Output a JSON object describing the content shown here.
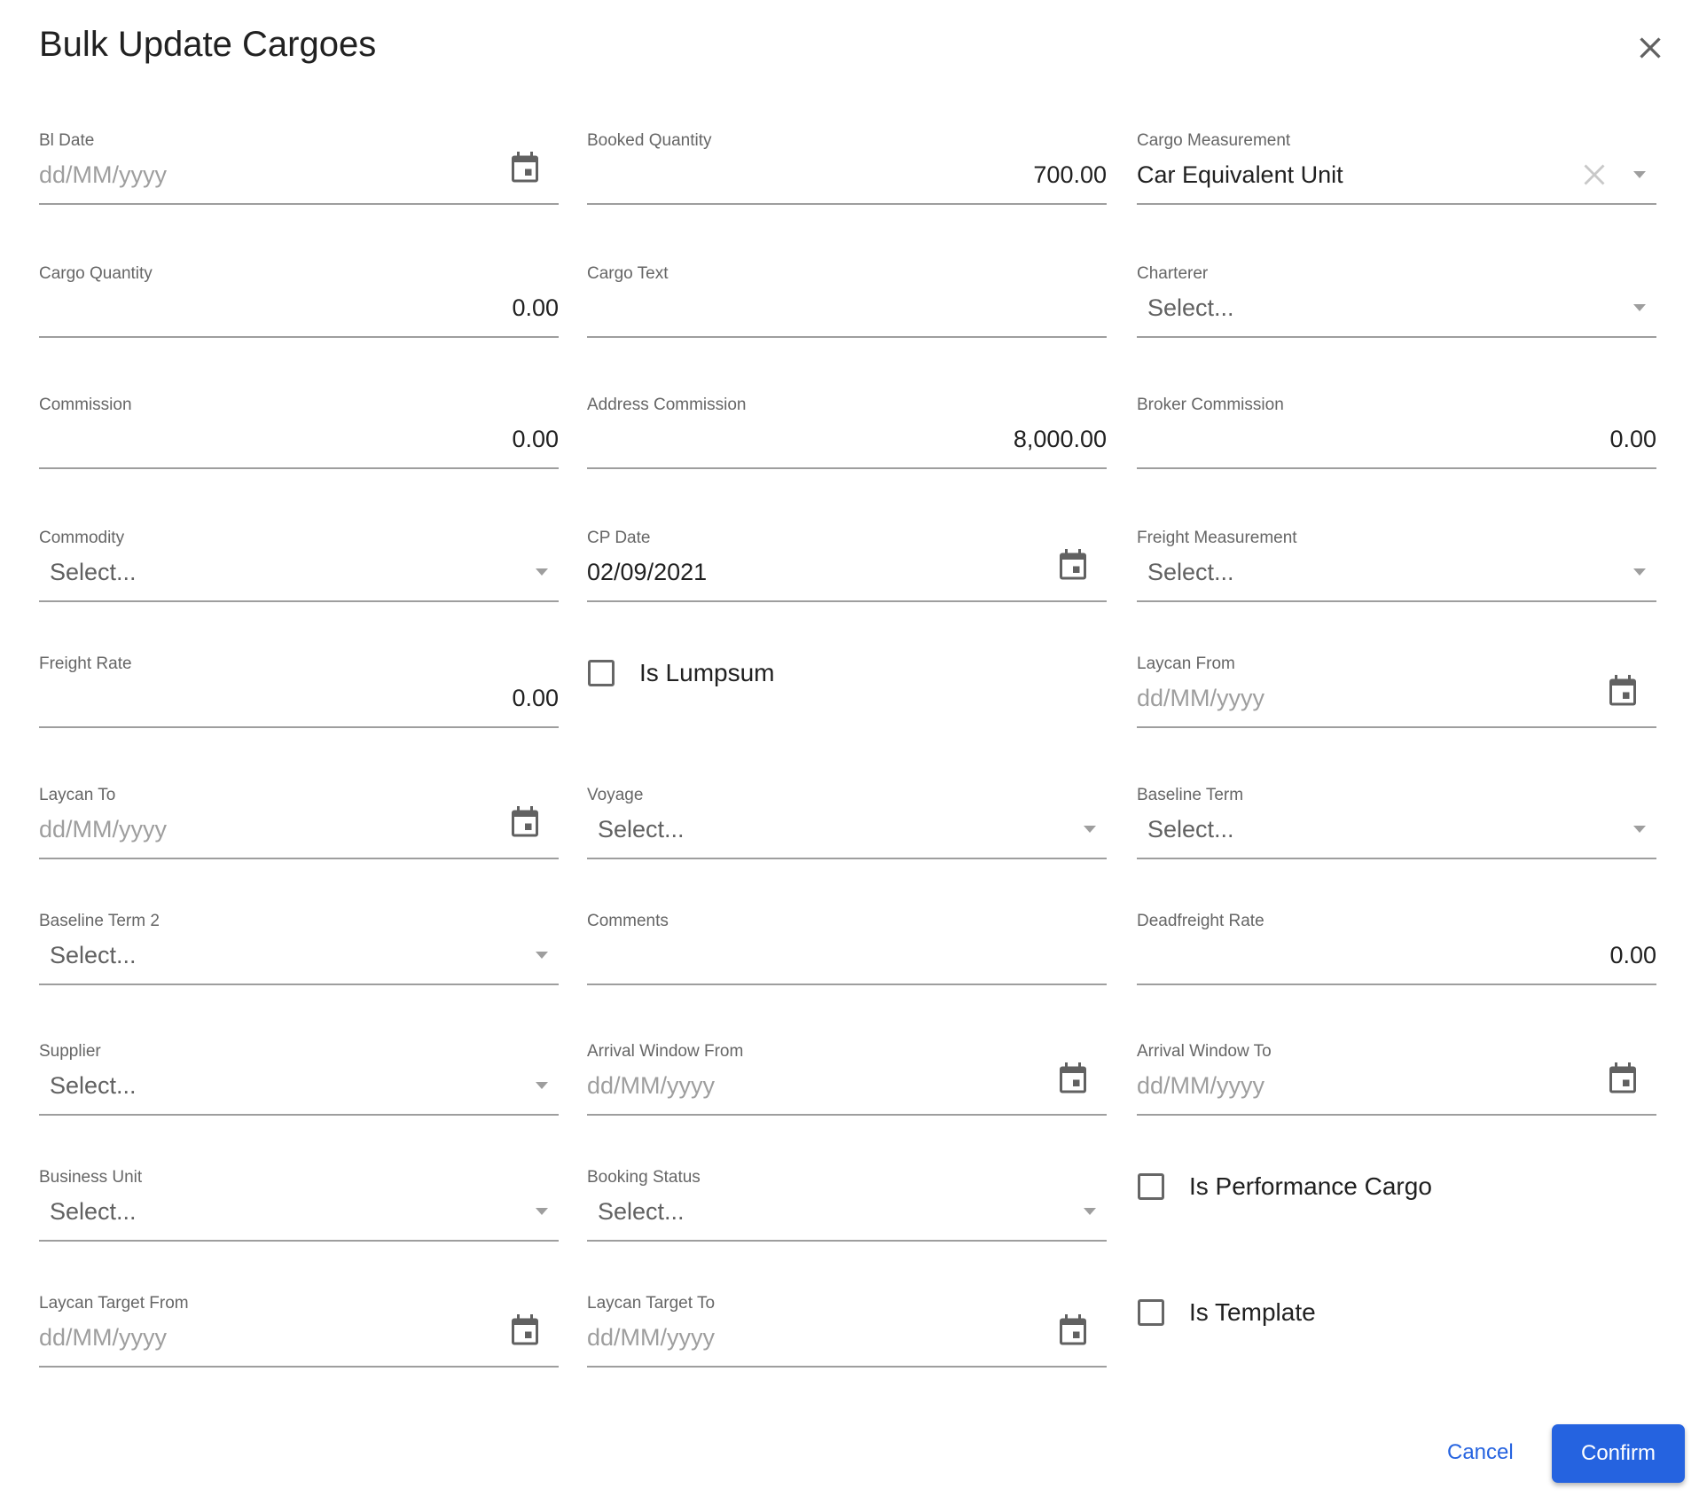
{
  "dialog": {
    "title": "Bulk Update Cargoes",
    "close_icon": "close-icon",
    "cancel_label": "Cancel",
    "confirm_label": "Confirm",
    "accent_color": "#2563e0"
  },
  "fields": [
    {
      "name": "bl-date",
      "type": "date",
      "label": "Bl Date",
      "value": "",
      "placeholder": "dd/MM/yyyy"
    },
    {
      "name": "booked-quantity",
      "type": "number",
      "label": "Booked Quantity",
      "value": "700.00"
    },
    {
      "name": "cargo-measurement",
      "type": "select",
      "label": "Cargo Measurement",
      "value": "Car Equivalent Unit",
      "placeholder": "Select...",
      "clearable": true
    },
    {
      "name": "cargo-quantity",
      "type": "number",
      "label": "Cargo Quantity",
      "value": "0.00"
    },
    {
      "name": "cargo-text",
      "type": "text",
      "label": "Cargo Text",
      "value": ""
    },
    {
      "name": "charterer",
      "type": "select",
      "label": "Charterer",
      "value": "",
      "placeholder": "Select..."
    },
    {
      "name": "commission",
      "type": "number",
      "label": "Commission",
      "value": "0.00"
    },
    {
      "name": "address-commission",
      "type": "number",
      "label": "Address Commission",
      "value": "8,000.00"
    },
    {
      "name": "broker-commission",
      "type": "number",
      "label": "Broker Commission",
      "value": "0.00"
    },
    {
      "name": "commodity",
      "type": "select",
      "label": "Commodity",
      "value": "",
      "placeholder": "Select..."
    },
    {
      "name": "cp-date",
      "type": "date",
      "label": "CP Date",
      "value": "02/09/2021",
      "placeholder": "dd/MM/yyyy"
    },
    {
      "name": "freight-measurement",
      "type": "select",
      "label": "Freight Measurement",
      "value": "",
      "placeholder": "Select..."
    },
    {
      "name": "freight-rate",
      "type": "number",
      "label": "Freight Rate",
      "value": "0.00"
    },
    {
      "name": "is-lumpsum",
      "type": "checkbox",
      "label": "Is Lumpsum",
      "checked": false
    },
    {
      "name": "laycan-from",
      "type": "date",
      "label": "Laycan From",
      "value": "",
      "placeholder": "dd/MM/yyyy"
    },
    {
      "name": "laycan-to",
      "type": "date",
      "label": "Laycan To",
      "value": "",
      "placeholder": "dd/MM/yyyy"
    },
    {
      "name": "voyage",
      "type": "select",
      "label": "Voyage",
      "value": "",
      "placeholder": "Select..."
    },
    {
      "name": "baseline-term",
      "type": "select",
      "label": "Baseline Term",
      "value": "",
      "placeholder": "Select..."
    },
    {
      "name": "baseline-term-2",
      "type": "select",
      "label": "Baseline Term 2",
      "value": "",
      "placeholder": "Select..."
    },
    {
      "name": "comments",
      "type": "text",
      "label": "Comments",
      "value": ""
    },
    {
      "name": "deadfreight-rate",
      "type": "number",
      "label": "Deadfreight Rate",
      "value": "0.00"
    },
    {
      "name": "supplier",
      "type": "select",
      "label": "Supplier",
      "value": "",
      "placeholder": "Select..."
    },
    {
      "name": "arrival-window-from",
      "type": "date",
      "label": "Arrival Window From",
      "value": "",
      "placeholder": "dd/MM/yyyy"
    },
    {
      "name": "arrival-window-to",
      "type": "date",
      "label": "Arrival Window To",
      "value": "",
      "placeholder": "dd/MM/yyyy"
    },
    {
      "name": "business-unit",
      "type": "select",
      "label": "Business Unit",
      "value": "",
      "placeholder": "Select..."
    },
    {
      "name": "booking-status",
      "type": "select",
      "label": "Booking Status",
      "value": "",
      "placeholder": "Select..."
    },
    {
      "name": "is-performance-cargo",
      "type": "checkbox",
      "label": "Is Performance Cargo",
      "checked": false
    },
    {
      "name": "laycan-target-from",
      "type": "date",
      "label": "Laycan Target From",
      "value": "",
      "placeholder": "dd/MM/yyyy"
    },
    {
      "name": "laycan-target-to",
      "type": "date",
      "label": "Laycan Target To",
      "value": "",
      "placeholder": "dd/MM/yyyy"
    },
    {
      "name": "is-template",
      "type": "checkbox",
      "label": "Is Template",
      "checked": false
    }
  ]
}
